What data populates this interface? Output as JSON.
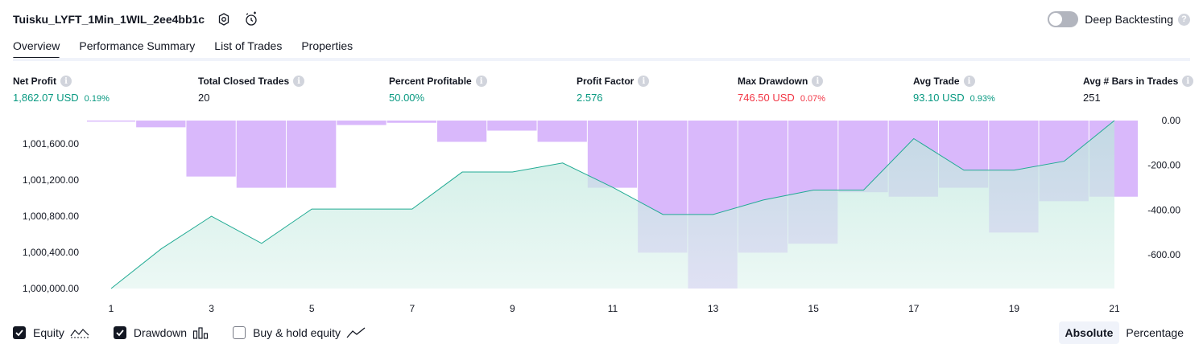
{
  "header": {
    "title": "Tuisku_LYFT_1Min_1WIL_2ee4bb1c",
    "deep_backtesting_label": "Deep Backtesting",
    "help_glyph": "?"
  },
  "tabs": [
    {
      "label": "Overview",
      "active": true
    },
    {
      "label": "Performance Summary",
      "active": false
    },
    {
      "label": "List of Trades",
      "active": false
    },
    {
      "label": "Properties",
      "active": false
    }
  ],
  "metrics": {
    "info_glyph": "i",
    "net_profit": {
      "label": "Net Profit",
      "value": "1,862.07 USD",
      "pct": "0.19%"
    },
    "total_closed_trades": {
      "label": "Total Closed Trades",
      "value": "20"
    },
    "percent_profitable": {
      "label": "Percent Profitable",
      "value": "50.00%"
    },
    "profit_factor": {
      "label": "Profit Factor",
      "value": "2.576"
    },
    "max_drawdown": {
      "label": "Max Drawdown",
      "value": "746.50 USD",
      "pct": "0.07%"
    },
    "avg_trade": {
      "label": "Avg Trade",
      "value": "93.10 USD",
      "pct": "0.93%"
    },
    "avg_bars": {
      "label": "Avg # Bars in Trades",
      "value": "251"
    }
  },
  "chart_data": {
    "type": "line",
    "series": [
      {
        "name": "Equity",
        "type": "area",
        "axis": "left",
        "values": [
          1000000,
          1000440,
          1000800,
          1000500,
          1000880,
          1000880,
          1000880,
          1001290,
          1001290,
          1001390,
          1001120,
          1000820,
          1000820,
          1000980,
          1001090,
          1001090,
          1001660,
          1001310,
          1001310,
          1001410,
          1001860
        ]
      },
      {
        "name": "Drawdown",
        "type": "bar",
        "axis": "right",
        "values": [
          -5,
          -30,
          -250,
          -300,
          -300,
          -20,
          -10,
          -95,
          -45,
          -95,
          -300,
          -590,
          -750,
          -590,
          -550,
          -320,
          -340,
          -300,
          -500,
          -360,
          -340
        ]
      }
    ],
    "x": [
      1,
      2,
      3,
      4,
      5,
      6,
      7,
      8,
      9,
      10,
      11,
      12,
      13,
      14,
      15,
      16,
      17,
      18,
      19,
      20,
      21
    ],
    "xticks": [
      "1",
      "3",
      "5",
      "7",
      "9",
      "11",
      "13",
      "15",
      "17",
      "19",
      "21"
    ],
    "yticks_left": [
      "1,001,600.00",
      "1,001,200.00",
      "1,000,800.00",
      "1,000,400.00",
      "1,000,000.00"
    ],
    "yticks_right": [
      "0.00",
      "-200.00",
      "-400.00",
      "-600.00"
    ],
    "ylim_left": [
      1000000,
      1001860
    ],
    "ylim_right": [
      -750,
      0
    ],
    "colors": {
      "equity_line": "#22ab94",
      "equity_fill": "#c8ece3",
      "drawdown_bar": "#d9b8fb",
      "bar_gap": "#ffffff"
    }
  },
  "legend": {
    "equity": {
      "label": "Equity",
      "checked": true
    },
    "drawdown": {
      "label": "Drawdown",
      "checked": true
    },
    "buy_hold": {
      "label": "Buy & hold equity",
      "checked": false
    }
  },
  "scale_toggle": {
    "absolute": "Absolute",
    "percentage": "Percentage",
    "selected": "absolute"
  }
}
